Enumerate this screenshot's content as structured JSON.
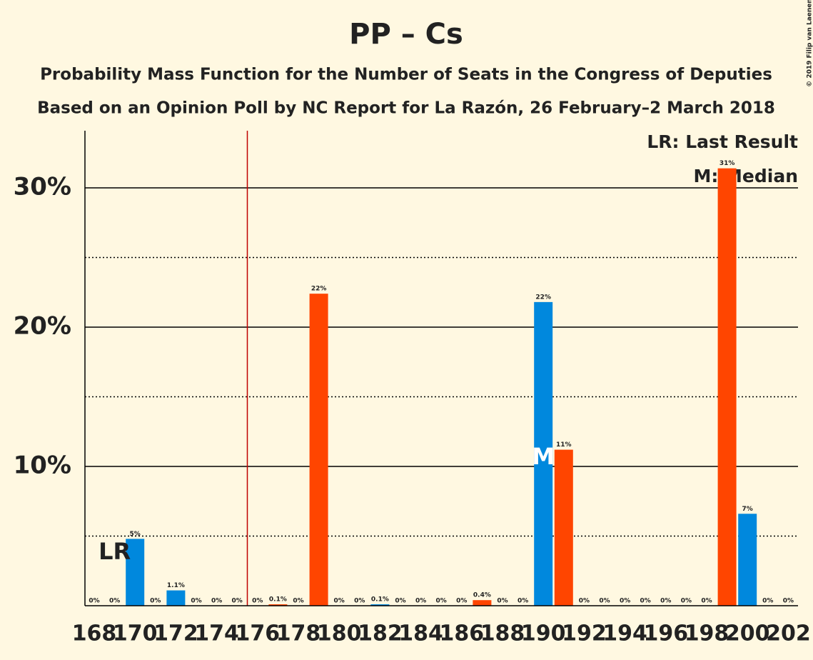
{
  "chart_data": {
    "type": "bar",
    "title": "PP – Cs",
    "subtitle": "Probability Mass Function for the Number of Seats in the Congress of Deputies",
    "subtitle2": "Based on an Opinion Poll by NC Report for La Razón, 26 February–2 March 2018",
    "copyright": "© 2019 Filip van Laenen",
    "legend": [
      "LR: Last Result",
      "M: Median"
    ],
    "categories": [
      168,
      null,
      170,
      null,
      172,
      null,
      174,
      null,
      176,
      null,
      178,
      null,
      180,
      null,
      182,
      null,
      184,
      null,
      186,
      null,
      188,
      null,
      190,
      null,
      192,
      null,
      194,
      null,
      196,
      null,
      198,
      null,
      200,
      null,
      202
    ],
    "values": [
      0,
      0,
      4.8,
      0,
      1.1,
      0,
      0,
      0,
      0,
      0.1,
      0,
      22.4,
      0,
      0,
      0.1,
      0,
      0,
      0,
      0,
      0.4,
      0,
      0,
      21.8,
      11.2,
      0,
      0,
      0,
      0,
      0,
      0,
      0,
      31.4,
      6.6,
      0,
      0
    ],
    "value_labels": [
      "0%",
      "0%",
      "5%",
      "0%",
      "1.1%",
      "0%",
      "0%",
      "0%",
      "0%",
      "0.1%",
      "0%",
      "22%",
      "0%",
      "0%",
      "0.1%",
      "0%",
      "0%",
      "0%",
      "0%",
      "0.4%",
      "0%",
      "0%",
      "22%",
      "11%",
      "0%",
      "0%",
      "0%",
      "0%",
      "0%",
      "0%",
      "0%",
      "31%",
      "7%",
      "0%",
      "0%"
    ],
    "colors": [
      "#ff4500",
      "#0088dd",
      "#0088dd",
      "#ff4500",
      "#0088dd",
      "#ff4500",
      "#0088dd",
      "#ff4500",
      "#0088dd",
      "#ff4500",
      "#0088dd",
      "#ff4500",
      "#0088dd",
      "#ff4500",
      "#0088dd",
      "#ff4500",
      "#0088dd",
      "#ff4500",
      "#0088dd",
      "#ff4500",
      "#0088dd",
      "#ff4500",
      "#0088dd",
      "#ff4500",
      "#0088dd",
      "#ff4500",
      "#0088dd",
      "#ff4500",
      "#0088dd",
      "#ff4500",
      "#0088dd",
      "#ff4500",
      "#0088dd",
      "#ff4500",
      "#0088dd"
    ],
    "ylim": [
      0,
      34.1
    ],
    "yticks": [
      {
        "value": 10,
        "label": "10%"
      },
      {
        "value": 20,
        "label": "20%"
      },
      {
        "value": 30,
        "label": "30%"
      }
    ],
    "minor_yticks": [
      5,
      15,
      25
    ],
    "majority_seats": 176,
    "last_result": {
      "seats": 170,
      "label": "LR"
    },
    "median": {
      "seats": 190,
      "label": "M"
    }
  }
}
